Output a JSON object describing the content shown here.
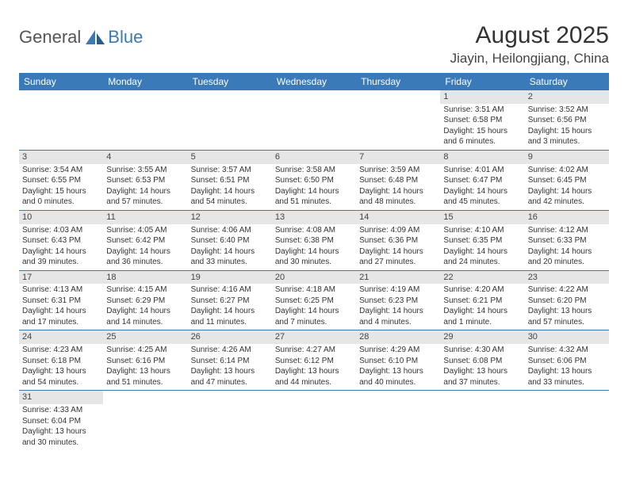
{
  "logo": {
    "text1": "General",
    "text2": "Blue"
  },
  "title": "August 2025",
  "location": "Jiayin, Heilongjiang, China",
  "colors": {
    "header_bg": "#3a7ab8",
    "header_text": "#ffffff",
    "daynum_bg": "#e6e6e6",
    "border": "#3a7ab8",
    "text": "#333333"
  },
  "day_names": [
    "Sunday",
    "Monday",
    "Tuesday",
    "Wednesday",
    "Thursday",
    "Friday",
    "Saturday"
  ],
  "weeks": [
    [
      null,
      null,
      null,
      null,
      null,
      {
        "n": "1",
        "sr": "3:51 AM",
        "ss": "6:58 PM",
        "dl": "15 hours and 6 minutes."
      },
      {
        "n": "2",
        "sr": "3:52 AM",
        "ss": "6:56 PM",
        "dl": "15 hours and 3 minutes."
      }
    ],
    [
      {
        "n": "3",
        "sr": "3:54 AM",
        "ss": "6:55 PM",
        "dl": "15 hours and 0 minutes."
      },
      {
        "n": "4",
        "sr": "3:55 AM",
        "ss": "6:53 PM",
        "dl": "14 hours and 57 minutes."
      },
      {
        "n": "5",
        "sr": "3:57 AM",
        "ss": "6:51 PM",
        "dl": "14 hours and 54 minutes."
      },
      {
        "n": "6",
        "sr": "3:58 AM",
        "ss": "6:50 PM",
        "dl": "14 hours and 51 minutes."
      },
      {
        "n": "7",
        "sr": "3:59 AM",
        "ss": "6:48 PM",
        "dl": "14 hours and 48 minutes."
      },
      {
        "n": "8",
        "sr": "4:01 AM",
        "ss": "6:47 PM",
        "dl": "14 hours and 45 minutes."
      },
      {
        "n": "9",
        "sr": "4:02 AM",
        "ss": "6:45 PM",
        "dl": "14 hours and 42 minutes."
      }
    ],
    [
      {
        "n": "10",
        "sr": "4:03 AM",
        "ss": "6:43 PM",
        "dl": "14 hours and 39 minutes."
      },
      {
        "n": "11",
        "sr": "4:05 AM",
        "ss": "6:42 PM",
        "dl": "14 hours and 36 minutes."
      },
      {
        "n": "12",
        "sr": "4:06 AM",
        "ss": "6:40 PM",
        "dl": "14 hours and 33 minutes."
      },
      {
        "n": "13",
        "sr": "4:08 AM",
        "ss": "6:38 PM",
        "dl": "14 hours and 30 minutes."
      },
      {
        "n": "14",
        "sr": "4:09 AM",
        "ss": "6:36 PM",
        "dl": "14 hours and 27 minutes."
      },
      {
        "n": "15",
        "sr": "4:10 AM",
        "ss": "6:35 PM",
        "dl": "14 hours and 24 minutes."
      },
      {
        "n": "16",
        "sr": "4:12 AM",
        "ss": "6:33 PM",
        "dl": "14 hours and 20 minutes."
      }
    ],
    [
      {
        "n": "17",
        "sr": "4:13 AM",
        "ss": "6:31 PM",
        "dl": "14 hours and 17 minutes."
      },
      {
        "n": "18",
        "sr": "4:15 AM",
        "ss": "6:29 PM",
        "dl": "14 hours and 14 minutes."
      },
      {
        "n": "19",
        "sr": "4:16 AM",
        "ss": "6:27 PM",
        "dl": "14 hours and 11 minutes."
      },
      {
        "n": "20",
        "sr": "4:18 AM",
        "ss": "6:25 PM",
        "dl": "14 hours and 7 minutes."
      },
      {
        "n": "21",
        "sr": "4:19 AM",
        "ss": "6:23 PM",
        "dl": "14 hours and 4 minutes."
      },
      {
        "n": "22",
        "sr": "4:20 AM",
        "ss": "6:21 PM",
        "dl": "14 hours and 1 minute."
      },
      {
        "n": "23",
        "sr": "4:22 AM",
        "ss": "6:20 PM",
        "dl": "13 hours and 57 minutes."
      }
    ],
    [
      {
        "n": "24",
        "sr": "4:23 AM",
        "ss": "6:18 PM",
        "dl": "13 hours and 54 minutes."
      },
      {
        "n": "25",
        "sr": "4:25 AM",
        "ss": "6:16 PM",
        "dl": "13 hours and 51 minutes."
      },
      {
        "n": "26",
        "sr": "4:26 AM",
        "ss": "6:14 PM",
        "dl": "13 hours and 47 minutes."
      },
      {
        "n": "27",
        "sr": "4:27 AM",
        "ss": "6:12 PM",
        "dl": "13 hours and 44 minutes."
      },
      {
        "n": "28",
        "sr": "4:29 AM",
        "ss": "6:10 PM",
        "dl": "13 hours and 40 minutes."
      },
      {
        "n": "29",
        "sr": "4:30 AM",
        "ss": "6:08 PM",
        "dl": "13 hours and 37 minutes."
      },
      {
        "n": "30",
        "sr": "4:32 AM",
        "ss": "6:06 PM",
        "dl": "13 hours and 33 minutes."
      }
    ],
    [
      {
        "n": "31",
        "sr": "4:33 AM",
        "ss": "6:04 PM",
        "dl": "13 hours and 30 minutes."
      },
      null,
      null,
      null,
      null,
      null,
      null
    ]
  ],
  "labels": {
    "sunrise": "Sunrise:",
    "sunset": "Sunset:",
    "daylight": "Daylight:"
  }
}
